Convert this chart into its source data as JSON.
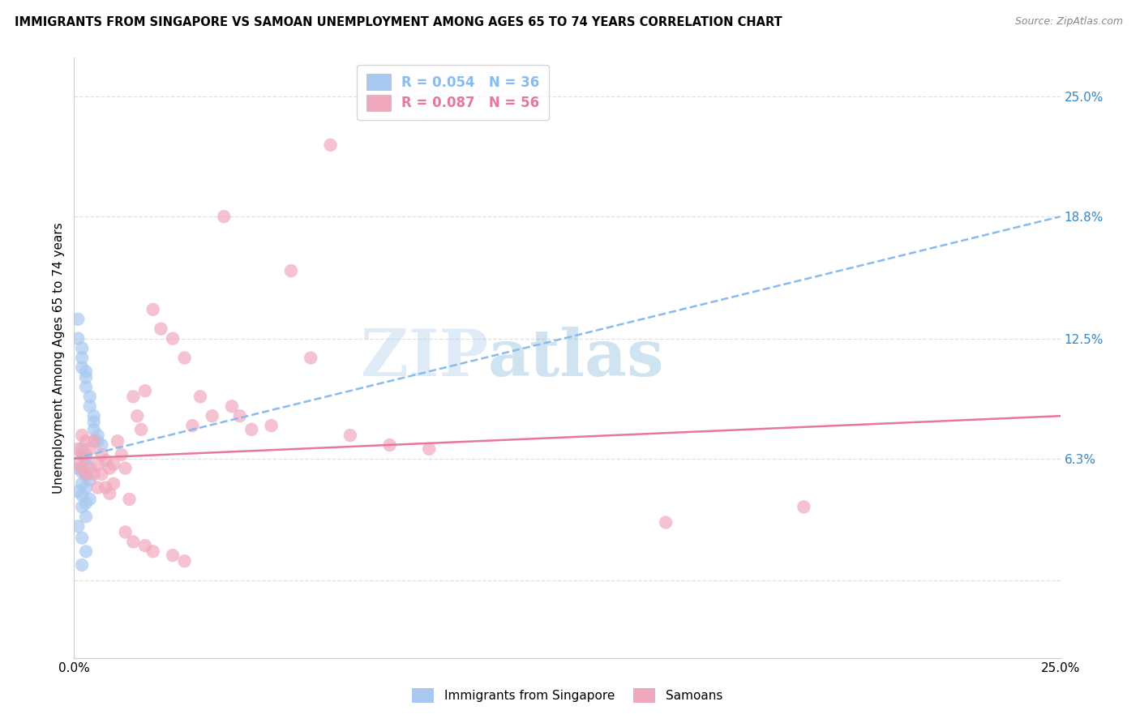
{
  "title": "IMMIGRANTS FROM SINGAPORE VS SAMOAN UNEMPLOYMENT AMONG AGES 65 TO 74 YEARS CORRELATION CHART",
  "source": "Source: ZipAtlas.com",
  "ylabel": "Unemployment Among Ages 65 to 74 years",
  "xlim": [
    0.0,
    0.25
  ],
  "ylim": [
    -0.04,
    0.27
  ],
  "right_ytick_values": [
    0.0,
    0.063,
    0.125,
    0.188,
    0.25
  ],
  "right_ytick_labels": [
    "",
    "6.3%",
    "12.5%",
    "18.8%",
    "25.0%"
  ],
  "xtick_values": [
    0.0,
    0.05,
    0.1,
    0.15,
    0.2,
    0.25
  ],
  "xtick_labels": [
    "0.0%",
    "",
    "",
    "",
    "",
    "25.0%"
  ],
  "blue_fill": "#a8c8f0",
  "pink_fill": "#f0a8bc",
  "blue_trend_color": "#88bbee",
  "pink_trend_color": "#e87898",
  "grid_color": "#dddddd",
  "legend1_text": "R = 0.054   N = 36",
  "legend2_text": "R = 0.087   N = 56",
  "watermark_text": "ZIPatlas",
  "singapore_x": [
    0.001,
    0.001,
    0.002,
    0.002,
    0.002,
    0.003,
    0.003,
    0.003,
    0.004,
    0.004,
    0.005,
    0.005,
    0.005,
    0.006,
    0.006,
    0.007,
    0.002,
    0.002,
    0.003,
    0.003,
    0.001,
    0.002,
    0.003,
    0.004,
    0.002,
    0.003,
    0.001,
    0.002,
    0.004,
    0.003,
    0.002,
    0.003,
    0.001,
    0.002,
    0.003,
    0.002
  ],
  "singapore_y": [
    0.135,
    0.125,
    0.12,
    0.115,
    0.11,
    0.108,
    0.105,
    0.1,
    0.095,
    0.09,
    0.085,
    0.082,
    0.078,
    0.075,
    0.072,
    0.07,
    0.068,
    0.065,
    0.063,
    0.06,
    0.058,
    0.056,
    0.054,
    0.052,
    0.05,
    0.048,
    0.046,
    0.044,
    0.042,
    0.04,
    0.038,
    0.033,
    0.028,
    0.022,
    0.015,
    0.008
  ],
  "samoan_x": [
    0.001,
    0.001,
    0.002,
    0.002,
    0.002,
    0.003,
    0.003,
    0.003,
    0.004,
    0.004,
    0.005,
    0.005,
    0.006,
    0.006,
    0.007,
    0.007,
    0.008,
    0.008,
    0.009,
    0.009,
    0.01,
    0.01,
    0.011,
    0.012,
    0.013,
    0.014,
    0.015,
    0.016,
    0.017,
    0.018,
    0.02,
    0.022,
    0.025,
    0.028,
    0.03,
    0.032,
    0.035,
    0.038,
    0.04,
    0.042,
    0.045,
    0.05,
    0.055,
    0.06,
    0.065,
    0.07,
    0.08,
    0.09,
    0.013,
    0.015,
    0.018,
    0.02,
    0.025,
    0.028,
    0.15,
    0.185
  ],
  "samoan_y": [
    0.068,
    0.06,
    0.075,
    0.065,
    0.058,
    0.072,
    0.065,
    0.055,
    0.068,
    0.058,
    0.072,
    0.055,
    0.06,
    0.048,
    0.065,
    0.055,
    0.062,
    0.048,
    0.058,
    0.045,
    0.06,
    0.05,
    0.072,
    0.065,
    0.058,
    0.042,
    0.095,
    0.085,
    0.078,
    0.098,
    0.14,
    0.13,
    0.125,
    0.115,
    0.08,
    0.095,
    0.085,
    0.188,
    0.09,
    0.085,
    0.078,
    0.08,
    0.16,
    0.115,
    0.225,
    0.075,
    0.07,
    0.068,
    0.025,
    0.02,
    0.018,
    0.015,
    0.013,
    0.01,
    0.03,
    0.038
  ]
}
